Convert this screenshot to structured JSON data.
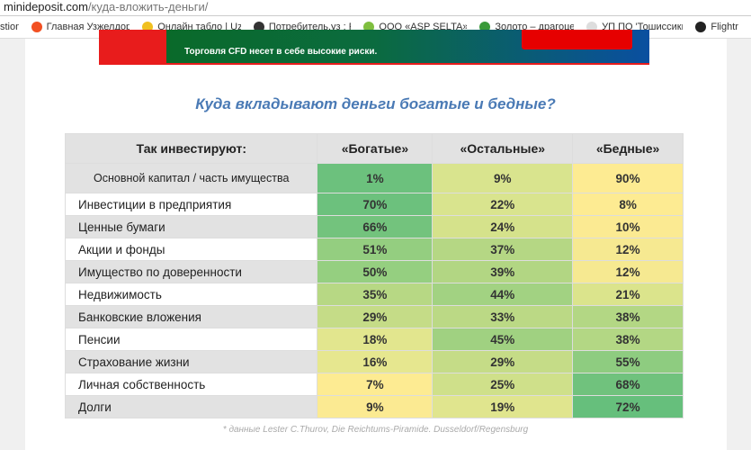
{
  "browser": {
    "domain": "minideposit.com",
    "path": "/куда-вложить-деньги/",
    "bookmarks": [
      {
        "label": "stion",
        "color": "#ffffff"
      },
      {
        "label": "Главная Узжелдорпа",
        "color": "#f25022"
      },
      {
        "label": "Онлайн табло | Uzair",
        "color": "#f0c020"
      },
      {
        "label": "Потребитель.уз : Pot",
        "color": "#333333"
      },
      {
        "label": "ООО «ASP SELTA». Д",
        "color": "#7fbf3f"
      },
      {
        "label": "Золото – драгоценн",
        "color": "#3a9a3a"
      },
      {
        "label": "УП ПО 'Тошиссиккуз",
        "color": "#dddddd"
      },
      {
        "label": "Flightra",
        "color": "#222222"
      }
    ]
  },
  "banner": {
    "text": "Торговля CFD несет в себе высокие риски."
  },
  "title": "Куда вкладывают деньги богатые и бедные?",
  "table": {
    "headers": [
      "Так инвестируют:",
      "«Богатые»",
      "«Остальные»",
      "«Бедные»"
    ],
    "rows": [
      {
        "label": "Основной капитал / часть имущества",
        "values": [
          "1%",
          "9%",
          "90%"
        ],
        "colors": [
          "#6cc17d",
          "#d9e48e",
          "#fdeb92"
        ]
      },
      {
        "label": "Инвестиции в предприятия",
        "values": [
          "70%",
          "22%",
          "8%"
        ],
        "colors": [
          "#6cc17d",
          "#d9e48e",
          "#fdeb92"
        ]
      },
      {
        "label": "Ценные бумаги",
        "values": [
          "66%",
          "24%",
          "10%"
        ],
        "colors": [
          "#73c37d",
          "#d5e28b",
          "#fbea92"
        ]
      },
      {
        "label": "Акции и фонды",
        "values": [
          "51%",
          "37%",
          "12%"
        ],
        "colors": [
          "#94ce80",
          "#b5d784",
          "#f6e991"
        ]
      },
      {
        "label": "Имущество по доверенности",
        "values": [
          "50%",
          "39%",
          "12%"
        ],
        "colors": [
          "#95cf80",
          "#b2d683",
          "#f6e991"
        ]
      },
      {
        "label": "Недвижимость",
        "values": [
          "35%",
          "44%",
          "21%"
        ],
        "colors": [
          "#b7d884",
          "#a2d282",
          "#dbe48c"
        ]
      },
      {
        "label": "Банковские вложения",
        "values": [
          "29%",
          "33%",
          "38%"
        ],
        "colors": [
          "#c5dc87",
          "#bbd985",
          "#b3d784"
        ]
      },
      {
        "label": "Пенсии",
        "values": [
          "18%",
          "45%",
          "38%"
        ],
        "colors": [
          "#e2e68e",
          "#a0d181",
          "#b3d784"
        ]
      },
      {
        "label": "Страхование жизни",
        "values": [
          "16%",
          "29%",
          "55%"
        ],
        "colors": [
          "#e6e78f",
          "#c5dc87",
          "#8ecc80"
        ]
      },
      {
        "label": "Личная собственность",
        "values": [
          "7%",
          "25%",
          "68%"
        ],
        "colors": [
          "#fdeb92",
          "#cfe08a",
          "#70c27d"
        ]
      },
      {
        "label": "Долги",
        "values": [
          "9%",
          "19%",
          "72%"
        ],
        "colors": [
          "#fbea92",
          "#e0e58e",
          "#66bf7c"
        ]
      }
    ]
  },
  "note": "* данные Lester C.Thurov, Die Reichtums-Piramide. Dusseldorf/Regensburg"
}
